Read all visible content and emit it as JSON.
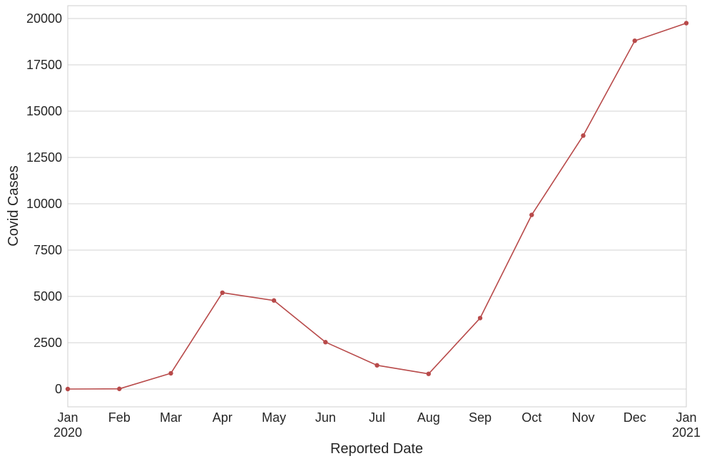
{
  "chart_data": {
    "type": "line",
    "title": "",
    "xlabel": "Reported Date",
    "ylabel": "Covid Cases",
    "x": [
      "2020-01",
      "2020-02",
      "2020-03",
      "2020-04",
      "2020-05",
      "2020-06",
      "2020-07",
      "2020-08",
      "2020-09",
      "2020-10",
      "2020-11",
      "2020-12",
      "2021-01"
    ],
    "x_tick_labels": [
      {
        "month": "Jan",
        "year": "2020"
      },
      {
        "month": "Feb",
        "year": ""
      },
      {
        "month": "Mar",
        "year": ""
      },
      {
        "month": "Apr",
        "year": ""
      },
      {
        "month": "May",
        "year": ""
      },
      {
        "month": "Jun",
        "year": ""
      },
      {
        "month": "Jul",
        "year": ""
      },
      {
        "month": "Aug",
        "year": ""
      },
      {
        "month": "Sep",
        "year": ""
      },
      {
        "month": "Oct",
        "year": ""
      },
      {
        "month": "Nov",
        "year": ""
      },
      {
        "month": "Dec",
        "year": ""
      },
      {
        "month": "Jan",
        "year": "2021"
      }
    ],
    "series": [
      {
        "values": [
          0,
          10,
          850,
          5200,
          4780,
          2530,
          1280,
          820,
          3830,
          9400,
          13680,
          18800,
          19750
        ]
      }
    ],
    "yticks": [
      0,
      2500,
      5000,
      7500,
      10000,
      12500,
      15000,
      17500,
      20000
    ],
    "ylim": [
      -1000,
      20700
    ],
    "grid": true,
    "line_color": "#b84a4a",
    "marker_color": "#b84a4a"
  }
}
